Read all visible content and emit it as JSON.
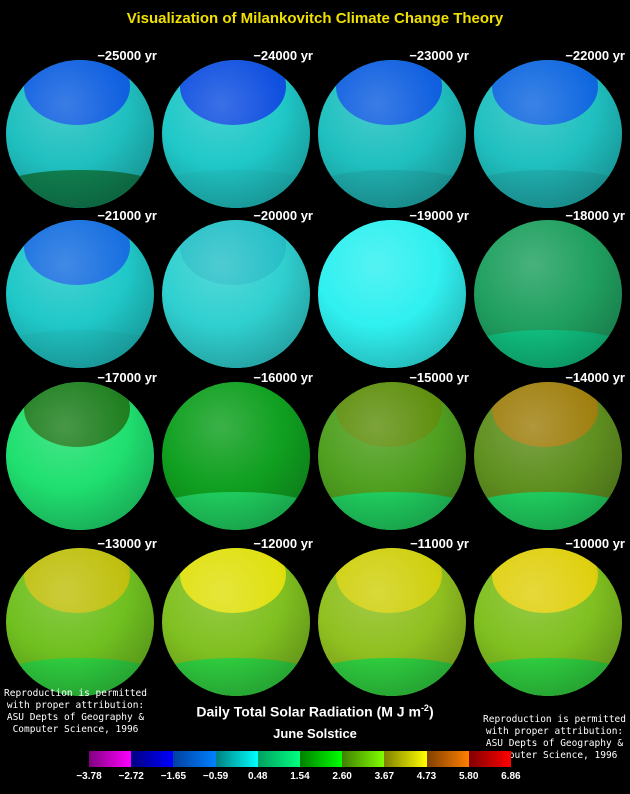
{
  "title": "Visualization of Milankovitch Climate Change Theory",
  "globes": [
    {
      "label": "−25000 yr",
      "base": "#20c0c0",
      "cap": "#1060e0",
      "band": "#108050"
    },
    {
      "label": "−24000 yr",
      "base": "#20c8c8",
      "cap": "#1050e0",
      "band": "#20c0c0"
    },
    {
      "label": "−23000 yr",
      "base": "#20c0c0",
      "cap": "#1060e0",
      "band": "#20b0b0"
    },
    {
      "label": "−22000 yr",
      "base": "#20c0c0",
      "cap": "#1068e0",
      "band": "#20b0b0"
    },
    {
      "label": "−21000 yr",
      "base": "#20c8c8",
      "cap": "#1870e0",
      "band": "#20c0c0"
    },
    {
      "label": "−20000 yr",
      "base": "#30d0d0",
      "cap": "#28c0c8",
      "band": "#30d0d0"
    },
    {
      "label": "−19000 yr",
      "base": "#30f0f0",
      "cap": "#30f0f0",
      "band": "#30f0f0"
    },
    {
      "label": "−18000 yr",
      "base": "#20a060",
      "cap": "#20a060",
      "band": "#10c080"
    },
    {
      "label": "−17000 yr",
      "base": "#20e070",
      "cap": "#208020",
      "band": "#20e070"
    },
    {
      "label": "−16000 yr",
      "base": "#10a020",
      "cap": "#10a020",
      "band": "#20d060"
    },
    {
      "label": "−15000 yr",
      "base": "#50a020",
      "cap": "#609010",
      "band": "#20d060"
    },
    {
      "label": "−14000 yr",
      "base": "#609020",
      "cap": "#a08010",
      "band": "#20d060"
    },
    {
      "label": "−13000 yr",
      "base": "#70c020",
      "cap": "#c0c010",
      "band": "#30d040"
    },
    {
      "label": "−12000 yr",
      "base": "#80c020",
      "cap": "#e0e010",
      "band": "#30d040"
    },
    {
      "label": "−11000 yr",
      "base": "#90c020",
      "cap": "#d0d010",
      "band": "#30d040"
    },
    {
      "label": "−10000 yr",
      "base": "#80c020",
      "cap": "#e0d010",
      "band": "#30d040"
    }
  ],
  "attribution": [
    "Reproduction is permitted",
    "with proper attribution:",
    "ASU Depts of Geography &",
    "Computer Science, 1996"
  ],
  "colorbar": {
    "title": "Daily Total Solar Radiation (M J m",
    "title_exp": "-2",
    "title_end": ")",
    "subtitle": "June Solstice",
    "ticks": [
      "−3.78",
      "−2.72",
      "−1.65",
      "−0.59",
      "0.48",
      "1.54",
      "2.60",
      "3.67",
      "4.73",
      "5.80",
      "6.86"
    ],
    "segments": [
      [
        "#800080",
        "#ff00ff"
      ],
      [
        "#000080",
        "#0000ff"
      ],
      [
        "#0040a0",
        "#0080ff"
      ],
      [
        "#008080",
        "#00ffff"
      ],
      [
        "#00a060",
        "#00ff80"
      ],
      [
        "#008000",
        "#00ff00"
      ],
      [
        "#408000",
        "#80ff00"
      ],
      [
        "#808000",
        "#ffff00"
      ],
      [
        "#804000",
        "#ff8000"
      ],
      [
        "#800000",
        "#ff0000"
      ]
    ]
  }
}
